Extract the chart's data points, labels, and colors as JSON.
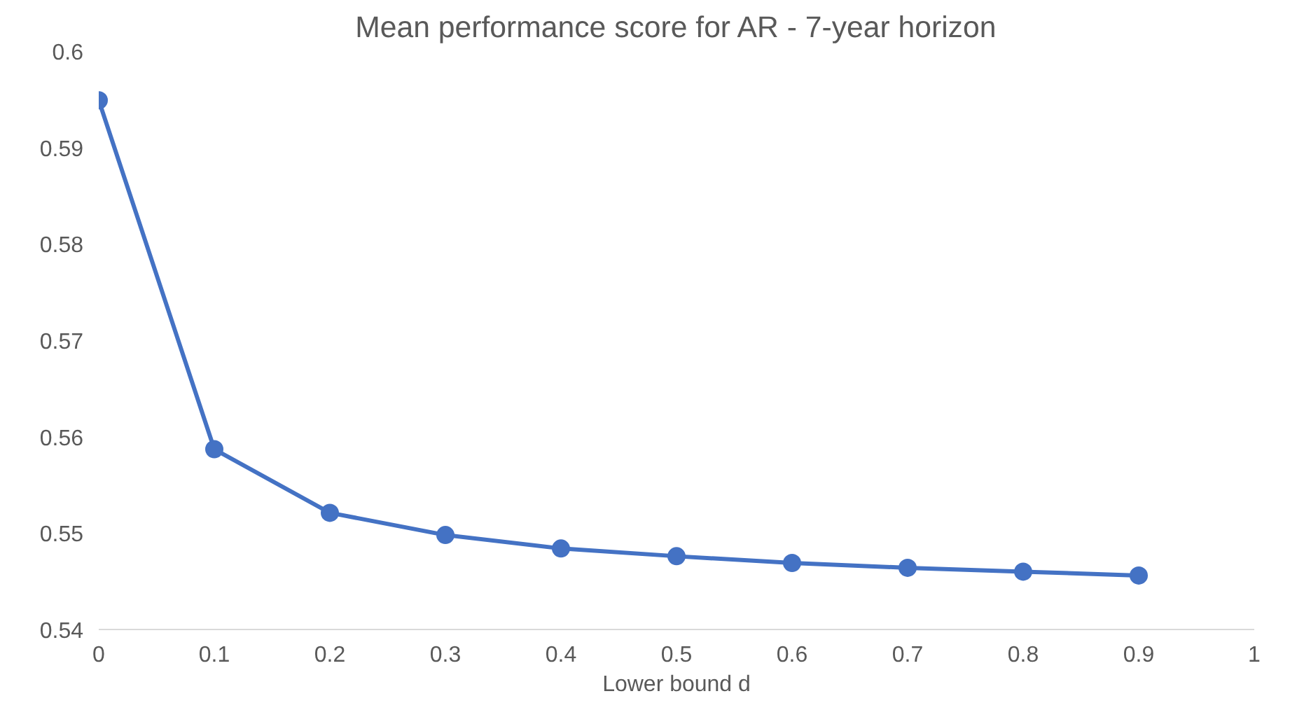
{
  "chart_data": {
    "type": "line",
    "title": "Mean performance score for AR - 7-year horizon",
    "xlabel": "Lower bound d",
    "x": [
      0,
      0.1,
      0.2,
      0.3,
      0.4,
      0.5,
      0.6,
      0.7,
      0.8,
      0.9
    ],
    "series": [
      {
        "color": "#4472c4",
        "values": [
          0.5949,
          0.5587,
          0.5521,
          0.5498,
          0.5484,
          0.5476,
          0.5469,
          0.5464,
          0.546,
          0.5456
        ]
      }
    ],
    "xlim": [
      0,
      1
    ],
    "xticks": [
      0,
      0.1,
      0.2,
      0.3,
      0.4,
      0.5,
      0.6,
      0.7,
      0.8,
      0.9,
      1
    ],
    "ylim": [
      0.54,
      0.6
    ],
    "yticks": [
      0.54,
      0.55,
      0.56,
      0.57,
      0.58,
      0.59,
      0.6
    ],
    "grid": false,
    "marker": "circle",
    "line_style": "solid"
  }
}
